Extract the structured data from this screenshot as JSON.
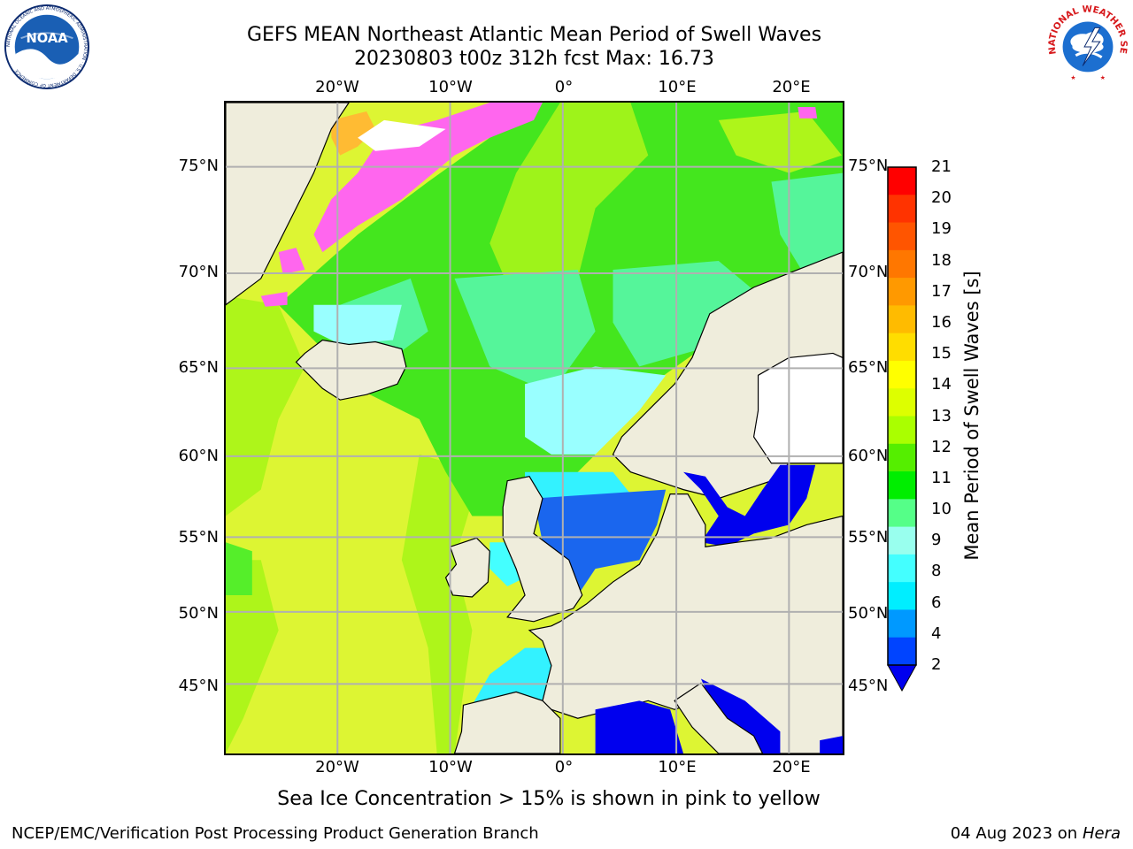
{
  "title_line1": "GEFS MEAN Northeast Atlantic Mean Period of Swell Waves",
  "title_line2": "20230803 t00z 312h fcst   Max: 16.73",
  "logos": {
    "left": {
      "icon": "noaa-logo",
      "text": "NOAA",
      "ring_text": "NATIONAL OCEANIC AND ATMOSPHERIC ADMINISTRATION · U.S. DEPARTMENT OF COMMERCE",
      "colors": {
        "blue": "#1a5fb4",
        "navy": "#0b2a6f"
      }
    },
    "right": {
      "icon": "nws-logo",
      "ring_text": "NATIONAL WEATHER SERVICE",
      "colors": {
        "red": "#d7191c",
        "blue": "#1c6fd0"
      }
    }
  },
  "longitude_labels": [
    "20°W",
    "10°W",
    "0°",
    "10°E",
    "20°E"
  ],
  "latitude_labels": [
    "75°N",
    "70°N",
    "65°N",
    "60°N",
    "55°N",
    "50°N",
    "45°N"
  ],
  "colorbar": {
    "title": "Mean Period of Swell Waves [s]",
    "levels": [
      "21",
      "20",
      "19",
      "18",
      "17",
      "16",
      "15",
      "14",
      "13",
      "12",
      "11",
      "10",
      "9",
      "8",
      "6",
      "4",
      "2"
    ],
    "colors_top_to_bottom": [
      "#ff0000",
      "#ff3300",
      "#ff5500",
      "#ff7700",
      "#ff9900",
      "#ffbb00",
      "#ffdd00",
      "#ffff00",
      "#ddff00",
      "#aaff00",
      "#55ee00",
      "#00ee00",
      "#55ff88",
      "#99ffee",
      "#44ffff",
      "#00eeff",
      "#0099ff",
      "#0044ff"
    ],
    "extend_color": "#0000ee"
  },
  "map_colors": {
    "land": "#efeddc",
    "ocean_yellow": "#ddf533",
    "ocean_lime": "#aef51a",
    "ocean_green": "#44e61e",
    "ocean_mint": "#55f59a",
    "ocean_cyan": "#99ffff",
    "ocean_aqua": "#33f2ff",
    "ocean_blue": "#1a66ee",
    "ocean_deepblue": "#0000ee",
    "ice_pink": "#ff66ee",
    "ice_orange": "#ffbb33",
    "grid": "#b0b0b0"
  },
  "note": "Sea Ice Concentration > 15% is shown in pink to yellow",
  "footer_left": "NCEP/EMC/Verification Post Processing Product Generation Branch",
  "footer_right_prefix": "04 Aug 2023 on",
  "footer_right_host": "Hera"
}
